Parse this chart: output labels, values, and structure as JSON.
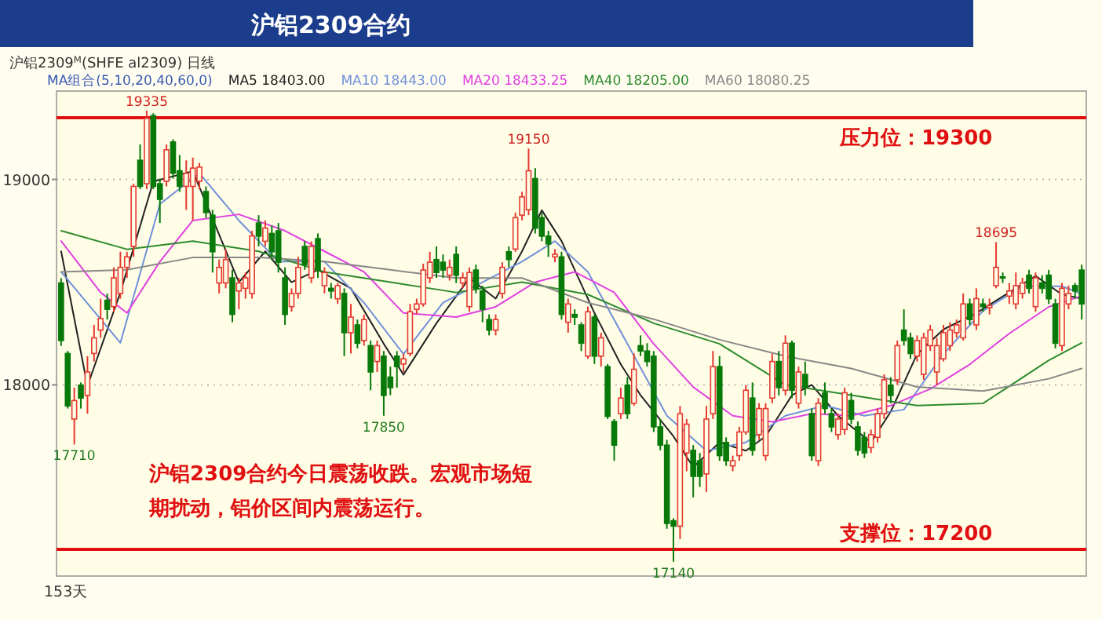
{
  "chart_data": {
    "type": "candlestick",
    "title": "沪铝2309合约",
    "subtitle": "沪铝2309$^{M}$(SHFE al2309)  日线",
    "legend_title": "MA组合(5,10,20,40,60,0)",
    "legend": "top left",
    "grid": "y",
    "categories": [
      null,
      null,
      null,
      null,
      null,
      null,
      null,
      null,
      null,
      null,
      null,
      null,
      null,
      null,
      null,
      null,
      null,
      null,
      null,
      null,
      null,
      null,
      null,
      null,
      null,
      null,
      null,
      null,
      null,
      null,
      null,
      null,
      null,
      null,
      null,
      null,
      null,
      null,
      null,
      null,
      null,
      null,
      null,
      null,
      null,
      null,
      null,
      null,
      null,
      null,
      null,
      null,
      null,
      null,
      null,
      null,
      null,
      null,
      null,
      null,
      null,
      null,
      null,
      null,
      null,
      null,
      null,
      null,
      null,
      null,
      null,
      null,
      null,
      null,
      null,
      null,
      null,
      null,
      null,
      null,
      null,
      null,
      null,
      null,
      null,
      null,
      null,
      null,
      null,
      null,
      null,
      null,
      null,
      null,
      null,
      null,
      null,
      null,
      null,
      null,
      null,
      null,
      null,
      null,
      null,
      null,
      null,
      null,
      null,
      null,
      null,
      null,
      null,
      null,
      null,
      null,
      null,
      null,
      null,
      null,
      null,
      null,
      null,
      null,
      null,
      null,
      null,
      null,
      null,
      null,
      null,
      null,
      null,
      null,
      null,
      null,
      null,
      null,
      null,
      null,
      null,
      null,
      null,
      null,
      null,
      null,
      null,
      null,
      null,
      null,
      null,
      null,
      null,
      null,
      null,
      null
    ],
    "ohlc": [
      [
        18496,
        18520,
        18190,
        18216
      ],
      [
        18153,
        18165,
        17885,
        17898
      ],
      [
        17834,
        17987,
        17710,
        17924
      ],
      [
        17999,
        18012,
        17885,
        17936
      ],
      [
        17949,
        18140,
        17860,
        18063
      ],
      [
        18153,
        18292,
        18114,
        18229
      ],
      [
        18267,
        18420,
        18229,
        18323
      ],
      [
        18412,
        18445,
        18318,
        18368
      ],
      [
        18381,
        18572,
        18356,
        18521
      ],
      [
        18445,
        18648,
        18420,
        18572
      ],
      [
        18572,
        18648,
        18521,
        18623
      ],
      [
        18674,
        18979,
        18623,
        18966
      ],
      [
        19093,
        19170,
        18953,
        18966
      ],
      [
        18979,
        19335,
        18953,
        19297
      ],
      [
        19310,
        19322,
        18953,
        18966
      ],
      [
        18979,
        19004,
        18788,
        18903
      ],
      [
        18991,
        19170,
        18966,
        19144
      ],
      [
        19182,
        19195,
        19004,
        19030
      ],
      [
        19042,
        19119,
        18940,
        18966
      ],
      [
        18966,
        19093,
        18852,
        19030
      ],
      [
        18966,
        19106,
        18801,
        19055
      ],
      [
        18991,
        19080,
        18953,
        19060
      ],
      [
        18941,
        18966,
        18813,
        18839
      ],
      [
        18826,
        18852,
        18547,
        18648
      ],
      [
        18496,
        18610,
        18445,
        18572
      ],
      [
        18496,
        18660,
        18470,
        18610
      ],
      [
        18521,
        18560,
        18305,
        18343
      ],
      [
        18457,
        18521,
        18368,
        18496
      ],
      [
        18470,
        18547,
        18420,
        18521
      ],
      [
        18445,
        18750,
        18420,
        18725
      ],
      [
        18788,
        18826,
        18674,
        18724
      ],
      [
        18699,
        18801,
        18674,
        18763
      ],
      [
        18737,
        18775,
        18610,
        18648
      ],
      [
        18750,
        18788,
        18547,
        18597
      ],
      [
        18521,
        18572,
        18292,
        18343
      ],
      [
        18381,
        18470,
        18356,
        18445
      ],
      [
        18445,
        18623,
        18420,
        18572
      ],
      [
        18674,
        18699,
        18560,
        18585
      ],
      [
        18521,
        18699,
        18496,
        18674
      ],
      [
        18712,
        18737,
        18521,
        18559
      ],
      [
        18483,
        18572,
        18445,
        18547
      ],
      [
        18470,
        18496,
        18420,
        18457
      ],
      [
        18419,
        18496,
        18394,
        18483
      ],
      [
        18445,
        18470,
        18140,
        18254
      ],
      [
        18254,
        18394,
        18153,
        18330
      ],
      [
        18292,
        18318,
        18178,
        18203
      ],
      [
        18216,
        18343,
        18191,
        18318
      ],
      [
        18191,
        18216,
        17974,
        18063
      ],
      [
        18114,
        18216,
        18063,
        18191
      ],
      [
        18140,
        18165,
        17850,
        17949
      ],
      [
        18038,
        18089,
        17950,
        17987
      ],
      [
        18140,
        18165,
        17987,
        18089
      ],
      [
        18102,
        18153,
        18063,
        18127
      ],
      [
        18153,
        18394,
        18140,
        18356
      ],
      [
        18368,
        18420,
        18343,
        18394
      ],
      [
        18394,
        18590,
        18381,
        18559
      ],
      [
        18521,
        18648,
        18496,
        18597
      ],
      [
        18610,
        18674,
        18521,
        18547
      ],
      [
        18597,
        18635,
        18521,
        18559
      ],
      [
        18534,
        18610,
        18508,
        18572
      ],
      [
        18635,
        18674,
        18496,
        18534
      ],
      [
        18496,
        18547,
        18470,
        18521
      ],
      [
        18381,
        18572,
        18356,
        18547
      ],
      [
        18559,
        18585,
        18445,
        18470
      ],
      [
        18457,
        18483,
        18305,
        18368
      ],
      [
        18318,
        18343,
        18241,
        18267
      ],
      [
        18267,
        18343,
        18241,
        18318
      ],
      [
        18445,
        18597,
        18420,
        18572
      ],
      [
        18648,
        18674,
        18572,
        18610
      ],
      [
        18661,
        18839,
        18648,
        18814
      ],
      [
        18826,
        18940,
        18801,
        18915
      ],
      [
        18852,
        19150,
        18826,
        19042
      ],
      [
        19004,
        19055,
        18737,
        18763
      ],
      [
        18814,
        18839,
        18699,
        18724
      ],
      [
        18724,
        18750,
        18623,
        18686
      ],
      [
        18623,
        18661,
        18597,
        18636
      ],
      [
        18623,
        18648,
        18318,
        18343
      ],
      [
        18305,
        18420,
        18254,
        18394
      ],
      [
        18343,
        18368,
        18292,
        18330
      ],
      [
        18292,
        18305,
        18165,
        18203
      ],
      [
        18140,
        18381,
        18127,
        18356
      ],
      [
        18330,
        18343,
        18102,
        18140
      ],
      [
        18140,
        18254,
        18089,
        18229
      ],
      [
        18089,
        18102,
        17834,
        17847
      ],
      [
        17822,
        17834,
        17631,
        17707
      ],
      [
        17860,
        17987,
        17834,
        17936
      ],
      [
        17999,
        18038,
        17834,
        17860
      ],
      [
        17911,
        18153,
        17898,
        18076
      ],
      [
        18191,
        18241,
        18140,
        18165
      ],
      [
        18165,
        18203,
        18089,
        18114
      ],
      [
        18140,
        18165,
        17771,
        17796
      ],
      [
        17796,
        17834,
        17682,
        17707
      ],
      [
        17707,
        17733,
        17300,
        17326
      ],
      [
        17339,
        17351,
        17140,
        17313
      ],
      [
        17313,
        17898,
        17250,
        17860
      ],
      [
        17669,
        17834,
        17580,
        17809
      ],
      [
        17682,
        17707,
        17453,
        17555
      ],
      [
        17631,
        17669,
        17504,
        17555
      ],
      [
        17567,
        17898,
        17478,
        17834
      ],
      [
        17860,
        18165,
        17834,
        18089
      ],
      [
        18089,
        18140,
        17631,
        17656
      ],
      [
        17720,
        17745,
        17606,
        17631
      ],
      [
        17606,
        17656,
        17580,
        17631
      ],
      [
        17656,
        17796,
        17631,
        17771
      ],
      [
        17771,
        17999,
        17758,
        17974
      ],
      [
        17936,
        18012,
        17656,
        17682
      ],
      [
        17758,
        17911,
        17733,
        17885
      ],
      [
        17656,
        17911,
        17631,
        17885
      ],
      [
        17936,
        18153,
        17911,
        18114
      ],
      [
        18114,
        18165,
        17949,
        17987
      ],
      [
        17974,
        18241,
        17949,
        18203
      ],
      [
        18203,
        18216,
        17936,
        17974
      ],
      [
        17911,
        18089,
        17885,
        18063
      ],
      [
        18051,
        18114,
        17949,
        17987
      ],
      [
        17860,
        17885,
        17631,
        17656
      ],
      [
        17631,
        17936,
        17606,
        17911
      ],
      [
        17962,
        18012,
        17860,
        17885
      ],
      [
        17860,
        17885,
        17771,
        17796
      ],
      [
        17758,
        17860,
        17733,
        17834
      ],
      [
        17783,
        17987,
        17758,
        17962
      ],
      [
        17924,
        17962,
        17809,
        17834
      ],
      [
        17796,
        17822,
        17656,
        17682
      ],
      [
        17745,
        17771,
        17644,
        17669
      ],
      [
        17695,
        17783,
        17669,
        17758
      ],
      [
        17745,
        17885,
        17720,
        17860
      ],
      [
        17860,
        18051,
        17834,
        18025
      ],
      [
        17999,
        18038,
        17911,
        17949
      ],
      [
        18025,
        18216,
        18000,
        18191
      ],
      [
        18267,
        18368,
        18191,
        18216
      ],
      [
        18229,
        18254,
        18127,
        18153
      ],
      [
        18140,
        18241,
        18114,
        18216
      ],
      [
        18051,
        18254,
        18025,
        18229
      ],
      [
        18191,
        18292,
        18165,
        18267
      ],
      [
        18063,
        18229,
        18000,
        18191
      ],
      [
        18127,
        18292,
        18114,
        18254
      ],
      [
        18191,
        18305,
        18165,
        18267
      ],
      [
        18254,
        18318,
        18229,
        18292
      ],
      [
        18229,
        18445,
        18216,
        18394
      ],
      [
        18394,
        18420,
        18292,
        18318
      ],
      [
        18292,
        18470,
        18267,
        18420
      ],
      [
        18394,
        18420,
        18356,
        18381
      ],
      [
        18376,
        18420,
        18343,
        18386
      ],
      [
        18483,
        18695,
        18470,
        18572
      ],
      [
        18526,
        18547,
        18496,
        18521
      ],
      [
        18432,
        18496,
        18394,
        18457
      ],
      [
        18394,
        18547,
        18368,
        18483
      ],
      [
        18445,
        18521,
        18420,
        18496
      ],
      [
        18534,
        18560,
        18445,
        18470
      ],
      [
        18381,
        18547,
        18356,
        18521
      ],
      [
        18496,
        18534,
        18445,
        18470
      ],
      [
        18534,
        18560,
        18394,
        18419
      ],
      [
        18394,
        18419,
        18178,
        18203
      ],
      [
        18191,
        18496,
        18165,
        18470
      ],
      [
        18394,
        18483,
        18368,
        18445
      ],
      [
        18483,
        18496,
        18420,
        18457
      ],
      [
        18559,
        18585,
        18318,
        18394
      ]
    ],
    "series": [
      {
        "name": "MA5 18403.00",
        "type": "line",
        "color": "#222222",
        "values": [
          18650,
          null,
          null,
          null,
          17995,
          null,
          null,
          null,
          null,
          18450,
          null,
          null,
          null,
          null,
          18990,
          null,
          null,
          null,
          null,
          null,
          19040,
          null,
          null,
          null,
          null,
          null,
          null,
          18500,
          null,
          null,
          null,
          18650,
          null,
          null,
          null,
          18500,
          null,
          null,
          null,
          18560,
          null,
          null,
          null,
          null,
          18470,
          null,
          null,
          null,
          null,
          18200,
          null,
          null,
          18050,
          null,
          null,
          null,
          null,
          18300,
          null,
          null,
          null,
          null,
          18520,
          null,
          null,
          null,
          18420,
          null,
          null,
          null,
          18650,
          null,
          null,
          18850,
          null,
          null,
          18700,
          null,
          null,
          null,
          null,
          18350,
          null,
          null,
          null,
          18100,
          null,
          null,
          17950,
          null,
          null,
          null,
          null,
          17750,
          null,
          null,
          17600,
          null,
          null,
          null,
          17720,
          null,
          null,
          null,
          17680,
          null,
          null,
          17750,
          null,
          null,
          null,
          17950,
          null,
          null,
          18000,
          null,
          null,
          null,
          17850,
          null,
          null,
          null,
          null,
          17720,
          null,
          null,
          17870,
          null,
          null,
          null,
          18150,
          null,
          null,
          null,
          18270,
          null,
          null,
          null,
          null,
          18350,
          null,
          null,
          null,
          null,
          18450,
          null,
          null,
          null,
          18530,
          null,
          null,
          null,
          18440,
          null,
          null,
          18420
        ]
      },
      {
        "name": "MA10 18443.00",
        "type": "line",
        "color": "#7090d8",
        "values": [
          18550,
          null,
          null,
          null,
          null,
          null,
          null,
          null,
          null,
          18205,
          null,
          null,
          null,
          null,
          null,
          18880,
          null,
          null,
          null,
          null,
          null,
          19030,
          null,
          null,
          null,
          null,
          null,
          18800,
          null,
          null,
          null,
          null,
          null,
          18600,
          null,
          null,
          null,
          null,
          null,
          null,
          18600,
          null,
          null,
          null,
          null,
          null,
          18400,
          null,
          null,
          null,
          null,
          null,
          18150,
          null,
          null,
          null,
          null,
          null,
          18400,
          null,
          null,
          null,
          null,
          null,
          18500,
          null,
          null,
          null,
          null,
          null,
          18600,
          null,
          null,
          null,
          null,
          18700,
          null,
          null,
          null,
          null,
          18550,
          null,
          null,
          null,
          null,
          null,
          18200,
          null,
          null,
          null,
          null,
          null,
          17850,
          null,
          null,
          null,
          null,
          null,
          17680,
          null,
          null,
          null,
          null,
          null,
          17720,
          null,
          null,
          null,
          null,
          null,
          17850,
          null,
          null,
          null,
          null,
          null,
          17900,
          null,
          null,
          null,
          null,
          null,
          17850,
          null,
          null,
          null,
          null,
          null,
          17880,
          null,
          null,
          null,
          null,
          null,
          18150,
          null,
          null,
          null,
          null,
          null,
          18360,
          null,
          null,
          null,
          null,
          null,
          18480,
          null,
          null,
          null,
          null,
          null,
          18480,
          null,
          null,
          18443
        ]
      },
      {
        "name": "MA20 18433.25",
        "type": "line",
        "color": "#e040e0",
        "values": [
          18700,
          null,
          null,
          null,
          null,
          null,
          18450,
          null,
          null,
          null,
          18350,
          null,
          null,
          null,
          null,
          18600,
          null,
          null,
          null,
          null,
          18800,
          null,
          null,
          null,
          null,
          null,
          null,
          18830,
          null,
          null,
          null,
          null,
          null,
          null,
          18750,
          null,
          null,
          null,
          null,
          null,
          18650,
          null,
          null,
          null,
          null,
          null,
          18550,
          null,
          null,
          null,
          null,
          null,
          18350,
          null,
          null,
          null,
          null,
          null,
          null,
          null,
          18330,
          null,
          null,
          null,
          null,
          null,
          18380,
          null,
          null,
          null,
          null,
          null,
          18500,
          null,
          null,
          null,
          null,
          null,
          18550,
          null,
          null,
          null,
          null,
          null,
          18450,
          null,
          null,
          null,
          null,
          null,
          18200,
          null,
          null,
          null,
          null,
          null,
          17990,
          null,
          null,
          null,
          null,
          null,
          17850,
          null,
          null,
          null,
          null,
          null,
          17820,
          null,
          null,
          null,
          null,
          null,
          17860,
          null,
          null,
          null,
          null,
          null,
          17850,
          null,
          null,
          null,
          null,
          null,
          17900,
          null,
          null,
          null,
          null,
          null,
          17980,
          null,
          null,
          null,
          null,
          null,
          18100,
          null,
          null,
          null,
          null,
          null,
          18250,
          null,
          null,
          null,
          null,
          null,
          18380,
          null,
          null,
          null,
          null,
          18433
        ]
      },
      {
        "name": "MA40 18205.00",
        "type": "line",
        "color": "#2e8b2e",
        "values": [
          18750,
          null,
          null,
          null,
          null,
          null,
          null,
          null,
          null,
          null,
          18660,
          null,
          null,
          null,
          null,
          null,
          null,
          null,
          null,
          null,
          18700,
          null,
          null,
          null,
          null,
          null,
          null,
          null,
          null,
          null,
          18650,
          null,
          null,
          null,
          null,
          null,
          null,
          null,
          null,
          null,
          18550,
          null,
          null,
          null,
          null,
          null,
          null,
          null,
          null,
          null,
          18500,
          null,
          null,
          null,
          null,
          null,
          null,
          null,
          null,
          null,
          18450,
          null,
          null,
          null,
          null,
          null,
          null,
          null,
          null,
          null,
          18500,
          null,
          null,
          null,
          null,
          null,
          null,
          null,
          null,
          null,
          18440,
          null,
          null,
          null,
          null,
          null,
          null,
          null,
          null,
          null,
          18300,
          null,
          null,
          null,
          null,
          null,
          null,
          null,
          null,
          null,
          18200,
          null,
          null,
          null,
          null,
          null,
          null,
          null,
          null,
          null,
          18000,
          null,
          null,
          null,
          null,
          null,
          null,
          null,
          null,
          null,
          17950,
          null,
          null,
          null,
          null,
          null,
          null,
          null,
          null,
          null,
          17900,
          null,
          null,
          null,
          null,
          null,
          null,
          null,
          null,
          null,
          17910,
          null,
          null,
          null,
          null,
          null,
          null,
          null,
          null,
          null,
          18120,
          null,
          null,
          null,
          null,
          18205
        ]
      },
      {
        "name": "MA60 18080.25",
        "type": "line",
        "color": "#888888",
        "values": [
          18550,
          null,
          null,
          null,
          null,
          null,
          null,
          null,
          null,
          null,
          18560,
          null,
          null,
          null,
          null,
          null,
          null,
          null,
          null,
          null,
          18620,
          null,
          null,
          null,
          null,
          null,
          null,
          null,
          null,
          null,
          18620,
          null,
          null,
          null,
          null,
          null,
          null,
          null,
          null,
          null,
          18600,
          null,
          null,
          null,
          null,
          null,
          null,
          null,
          null,
          null,
          18560,
          null,
          null,
          null,
          null,
          null,
          null,
          null,
          null,
          null,
          18520,
          null,
          null,
          null,
          null,
          null,
          null,
          null,
          null,
          null,
          18520,
          null,
          null,
          null,
          null,
          null,
          null,
          null,
          null,
          null,
          18400,
          null,
          null,
          null,
          null,
          null,
          null,
          null,
          null,
          null,
          18320,
          null,
          null,
          null,
          null,
          null,
          null,
          null,
          null,
          null,
          18220,
          null,
          null,
          null,
          null,
          null,
          null,
          null,
          null,
          null,
          18140,
          null,
          null,
          null,
          null,
          null,
          null,
          null,
          null,
          null,
          18080,
          null,
          null,
          null,
          null,
          null,
          null,
          null,
          null,
          null,
          17990,
          null,
          null,
          null,
          null,
          null,
          null,
          null,
          null,
          null,
          17970,
          null,
          null,
          null,
          null,
          null,
          null,
          null,
          null,
          null,
          18030,
          null,
          null,
          null,
          null,
          18080
        ]
      }
    ],
    "ylim": [
      17070,
      19430
    ],
    "yticks": [
      18000,
      19000
    ],
    "ref_lines": [
      {
        "axis": "y",
        "value": 19300,
        "label": "压力位：19300",
        "color": "#e01010"
      },
      {
        "axis": "y",
        "value": 17200,
        "label": "支撑位：17200",
        "color": "#e01010"
      }
    ],
    "annotations": [
      "沪铝2309合约今日震荡收跌。宏观市场短期扰动，铝价区间内震荡运行。",
      "153天",
      {
        "text": "19335",
        "y": 19335
      },
      {
        "text": "19150",
        "y": 19150
      },
      {
        "text": "18695",
        "y": 18695
      },
      {
        "text": "17710",
        "y": 17710
      },
      {
        "text": "17850",
        "y": 17850
      },
      {
        "text": "17140",
        "y": 17140
      }
    ]
  }
}
